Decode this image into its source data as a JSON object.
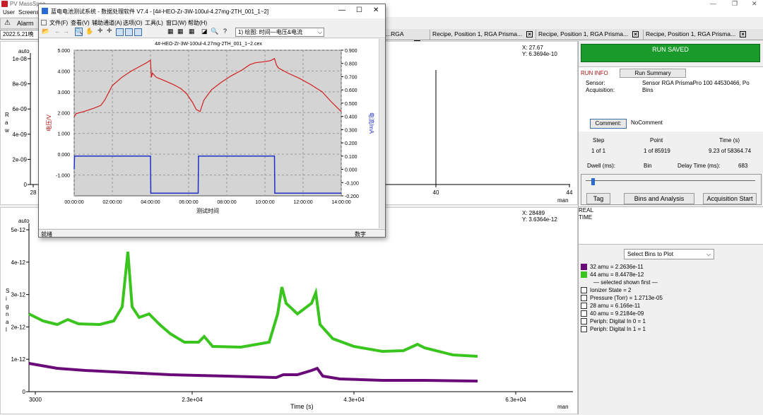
{
  "main_window": {
    "title": "PV MassSpec",
    "menu": [
      "User",
      "Screens"
    ],
    "alarm_label": "Alarm",
    "left_tab_label": "2022.5.21晚",
    "tabs": [
      "...RGA Prisma...",
      "Recipe, Position 1, RGA Prisma...",
      "Recipe, Position 1, RGA Prisma...",
      "Recipe, Position 1, RGA Prisma..."
    ]
  },
  "top_plot": {
    "y_unit_label": "auto",
    "y_axis_label": "R\na\nw",
    "y_ticks": [
      "1e-08",
      "8e-09",
      "6e-09",
      "4e-09",
      "2e-09",
      "0"
    ],
    "x_ticks": [
      "28",
      "40",
      "44"
    ],
    "x_unit": "man",
    "cursor_x": "X: 27.67",
    "cursor_y": "Y: 6.3694e-10"
  },
  "bottom_plot": {
    "y_unit_label": "auto",
    "y_axis_label": "S\ni\ng\nn\na\nl",
    "y_ticks": [
      "5e-12",
      "4e-12",
      "3e-12",
      "2e-12",
      "1e-12",
      "0"
    ],
    "x_ticks": [
      "3000",
      "2.3e+04",
      "4.3e+04",
      "6.3e+04"
    ],
    "x_unit": "man",
    "x_label": "Time (s)",
    "cursor_x": "X: 28489",
    "cursor_y": "Y: 3.6364e-12",
    "series_colors": {
      "amu32": "#6a0a78",
      "amu44": "#39c41e"
    }
  },
  "right_panel": {
    "status": "RUN SAVED",
    "status_color": "#1a9a2a",
    "run_info_label": "RUN INFO",
    "run_summary_button": "Run Summary",
    "sensor_label": "Sensor:",
    "sensor_value": "Sensor RGA PrismaPro 100 44530466, Po",
    "acquisition_label": "Acquisition:",
    "acquisition_value": "Bins",
    "comment_button": "Comment:",
    "comment_value": "NoComment",
    "step_header": "Step",
    "point_header": "Point",
    "time_header": "Time (s)",
    "step_value": "1 of 1",
    "point_value": "1 of 85919",
    "time_value": "9.23 of 58364.74",
    "dwell_label": "Dwell (ms):",
    "dwell_value": "Bin",
    "delay_label": "Delay Time (ms):",
    "delay_value": "683",
    "tag_button": "Tag",
    "bins_button": "Bins and Analysis",
    "acq_start_button": "Acquisition Start",
    "real_time_label": "REAL\nTIME",
    "select_bins": "Select Bins to Plot",
    "legend": [
      {
        "label": "32 amu = 2.2636e-11",
        "checked": true,
        "color": "#6a0a78"
      },
      {
        "label": "44 amu = 8.4478e-12",
        "checked": true,
        "color": "#39c41e"
      },
      {
        "label": "— selected shown first —",
        "checked": null,
        "color": ""
      },
      {
        "label": "Ionizer State = 2",
        "checked": false,
        "color": ""
      },
      {
        "label": "Pressure (Torr) = 1.2713e-05",
        "checked": false,
        "color": ""
      },
      {
        "label": "28 amu = 6.166e-11",
        "checked": false,
        "color": ""
      },
      {
        "label": "40 amu = 9.2184e-09",
        "checked": false,
        "color": ""
      },
      {
        "label": "Periph: Digital In 0 = 1",
        "checked": false,
        "color": ""
      },
      {
        "label": "Periph: Digital In 1 = 1",
        "checked": false,
        "color": ""
      }
    ]
  },
  "popup": {
    "title": "蓝电电池测试系统 - 数据处理软件 V7.4 - [4#-HEO-Zr-3W-100ul-4.27mg-2TH_001_1~2]",
    "menu": [
      "文件(F)",
      "查看(V)",
      "辅助通道(A)",
      "选项(O)",
      "工具(L)",
      "窗口(W)",
      "帮助(H)"
    ],
    "plot_select": "1) 绘图: 时间—电压&电流",
    "chart_title": "4#-HEO-Zr-3W-100ul-4.27mg-2TH_001_1~2.cex",
    "status_left": "就绪",
    "status_right": "数字"
  },
  "chart_data": {
    "type": "line",
    "title": "4#-HEO-Zr-3W-100ul-4.27mg-2TH_001_1~2.cex",
    "xlabel": "测试时间",
    "ylabel": "电压/V",
    "ylabel_right": "电流/mA",
    "x_ticks": [
      "00:00:00",
      "02:00:00",
      "04:00:00",
      "06:00:00",
      "08:00:00",
      "10:00:00",
      "12:00:00",
      "14:00:00"
    ],
    "y_ticks_left": [
      "5.000",
      "4.000",
      "3.000",
      "2.000",
      "1.000",
      "0.000",
      "-1.000"
    ],
    "y_ticks_right": [
      "0.900",
      "0.800",
      "0.700",
      "0.600",
      "0.500",
      "0.400",
      "0.300",
      "0.200",
      "0.100",
      "0.000",
      "-0.100",
      "-0.200"
    ],
    "xlim_hours": [
      0,
      14
    ],
    "ylim_left": [
      -2.0,
      5.0
    ],
    "ylim_right": [
      -0.2,
      0.9
    ],
    "series": [
      {
        "name": "电压",
        "axis": "left",
        "color": "#d21f1f",
        "x": [
          0,
          0.1,
          0.5,
          1.0,
          1.4,
          1.6,
          1.8,
          2.0,
          2.5,
          3.0,
          3.5,
          3.8,
          4.0,
          4.05,
          4.1,
          4.3,
          4.7,
          5.2,
          5.6,
          5.9,
          6.2,
          6.4,
          6.6,
          6.8,
          7.2,
          7.7,
          8.2,
          8.8,
          9.2,
          9.5,
          10.0,
          10.3,
          10.5,
          10.6,
          10.7,
          11.2,
          11.8,
          12.4,
          13.0,
          13.5,
          14.0
        ],
        "y": [
          1.8,
          1.95,
          2.05,
          2.2,
          2.35,
          2.6,
          2.95,
          3.3,
          3.7,
          4.0,
          4.25,
          4.4,
          4.52,
          3.7,
          3.9,
          3.7,
          3.55,
          3.35,
          3.15,
          2.9,
          2.5,
          2.15,
          2.05,
          2.6,
          3.1,
          3.45,
          3.75,
          4.05,
          4.3,
          4.4,
          4.45,
          4.5,
          4.6,
          4.3,
          4.15,
          3.9,
          3.65,
          3.35,
          3.0,
          2.5,
          2.05
        ]
      },
      {
        "name": "电流",
        "axis": "right",
        "color": "#1f2fc8",
        "x": [
          0,
          0.02,
          4.0,
          4.02,
          6.5,
          6.52,
          10.5,
          10.52,
          14.0
        ],
        "y": [
          0.0,
          0.1,
          0.1,
          -0.18,
          -0.18,
          0.1,
          0.1,
          -0.18,
          -0.18
        ]
      }
    ]
  }
}
